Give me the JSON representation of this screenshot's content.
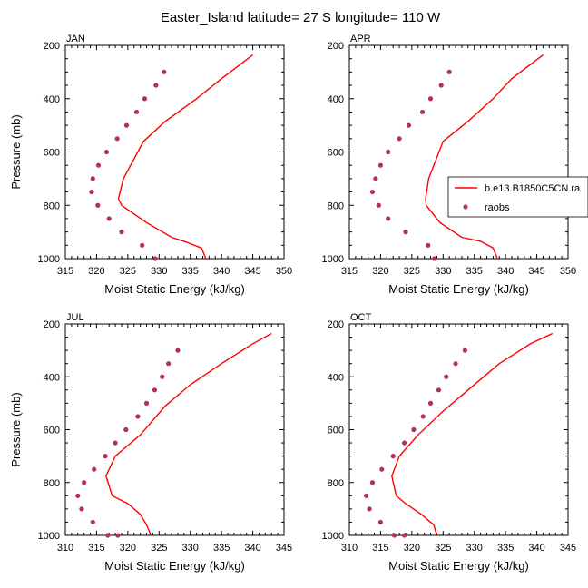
{
  "figure": {
    "title": "Easter_Island  latitude= 27 S longitude= 110 W"
  },
  "legend": {
    "entries": [
      {
        "label": "b.e13.B1850C5CN.ra",
        "style": "line",
        "color": "#ff0000"
      },
      {
        "label": "raobs",
        "style": "marker",
        "color": "#b03060"
      }
    ]
  },
  "colors": {
    "model_line": "#ff0000",
    "obs_marker": "#b03060"
  },
  "chart_data": [
    {
      "type": "line",
      "panel_label": "JAN",
      "xlabel": "Moist Static Energy (kJ/kg)",
      "ylabel": "Pressure (mb)",
      "xlim": [
        315,
        350
      ],
      "ylim": [
        1000,
        200
      ],
      "xticks": [
        315,
        320,
        325,
        330,
        335,
        340,
        345,
        350
      ],
      "yticks": [
        200,
        400,
        600,
        800,
        1000
      ],
      "series": [
        {
          "name": "b.e13.B1850C5CN.ra",
          "kind": "line",
          "x": [
            345.0,
            340.0,
            336.0,
            331.0,
            327.5,
            324.3,
            323.5,
            324.0,
            328.0,
            332.0,
            334.0,
            336.8,
            337.5
          ],
          "y": [
            236,
            325,
            400,
            485,
            560,
            700,
            775,
            800,
            865,
            920,
            935,
            960,
            1000
          ]
        },
        {
          "name": "raobs",
          "kind": "marker",
          "x": [
            330.8,
            329.5,
            327.7,
            326.4,
            324.8,
            323.3,
            321.6,
            320.3,
            319.4,
            319.2,
            320.2,
            322.0,
            324.0,
            327.3,
            329.4
          ],
          "y": [
            300,
            350,
            400,
            450,
            500,
            550,
            600,
            650,
            700,
            750,
            800,
            850,
            900,
            950,
            1000
          ]
        }
      ]
    },
    {
      "type": "line",
      "panel_label": "APR",
      "xlabel": "Moist Static Energy (kJ/kg)",
      "ylabel": "",
      "xlim": [
        315,
        350
      ],
      "ylim": [
        1000,
        200
      ],
      "xticks": [
        315,
        320,
        325,
        330,
        335,
        340,
        345,
        350
      ],
      "yticks": [
        200,
        400,
        600,
        800,
        1000
      ],
      "series": [
        {
          "name": "b.e13.B1850C5CN.ra",
          "kind": "line",
          "x": [
            346.0,
            341.0,
            338.0,
            334.0,
            330.0,
            327.7,
            327.2,
            327.3,
            329.5,
            333.0,
            336.0,
            338.0,
            338.7
          ],
          "y": [
            236,
            325,
            400,
            485,
            560,
            700,
            775,
            800,
            865,
            920,
            935,
            960,
            1000
          ]
        },
        {
          "name": "raobs",
          "kind": "marker",
          "x": [
            331.0,
            329.7,
            328.0,
            326.7,
            324.5,
            323.0,
            321.2,
            320.0,
            319.2,
            318.7,
            319.7,
            321.2,
            324.0,
            327.6,
            328.6
          ],
          "y": [
            300,
            350,
            400,
            450,
            500,
            550,
            600,
            650,
            700,
            750,
            800,
            850,
            900,
            950,
            1000
          ]
        }
      ]
    },
    {
      "type": "line",
      "panel_label": "JUL",
      "xlabel": "Moist Static Energy (kJ/kg)",
      "ylabel": "Pressure (mb)",
      "xlim": [
        310,
        345
      ],
      "ylim": [
        1000,
        200
      ],
      "xticks": [
        310,
        315,
        320,
        325,
        330,
        335,
        340,
        345
      ],
      "yticks": [
        200,
        400,
        600,
        800,
        1000
      ],
      "series": [
        {
          "name": "b.e13.B1850C5CN.ra",
          "kind": "line",
          "x": [
            343.0,
            340.0,
            335.0,
            330.0,
            326.0,
            322.0,
            318.0,
            316.5,
            317.5,
            320.0,
            322.0,
            323.0,
            323.7
          ],
          "y": [
            236,
            275,
            350,
            430,
            510,
            620,
            700,
            775,
            850,
            880,
            920,
            960,
            1000
          ]
        },
        {
          "name": "raobs",
          "kind": "marker",
          "x": [
            328.0,
            326.5,
            325.5,
            324.3,
            323.0,
            321.6,
            319.7,
            318.0,
            316.4,
            314.6,
            313.0,
            312.0,
            312.6,
            314.4,
            316.8,
            318.4
          ],
          "y": [
            300,
            350,
            400,
            450,
            500,
            550,
            600,
            650,
            700,
            750,
            800,
            850,
            900,
            950,
            1000,
            1000
          ]
        }
      ]
    },
    {
      "type": "line",
      "panel_label": "OCT",
      "xlabel": "Moist Static Energy (kJ/kg)",
      "ylabel": "",
      "xlim": [
        310,
        345
      ],
      "ylim": [
        1000,
        200
      ],
      "xticks": [
        310,
        315,
        320,
        325,
        330,
        335,
        340,
        345
      ],
      "yticks": [
        200,
        400,
        600,
        800,
        1000
      ],
      "series": [
        {
          "name": "b.e13.B1850C5CN.ra",
          "kind": "line",
          "x": [
            342.5,
            339.0,
            334.0,
            329.0,
            325.0,
            321.0,
            318.0,
            316.8,
            317.5,
            319.0,
            321.5,
            323.5,
            324.0
          ],
          "y": [
            236,
            275,
            350,
            450,
            530,
            620,
            700,
            775,
            850,
            880,
            920,
            960,
            1000
          ]
        },
        {
          "name": "raobs",
          "kind": "marker",
          "x": [
            328.5,
            327.0,
            325.5,
            324.3,
            323.0,
            321.8,
            320.3,
            318.8,
            317.0,
            315.2,
            313.7,
            312.7,
            313.2,
            315.0,
            317.2,
            318.8
          ],
          "y": [
            300,
            350,
            400,
            450,
            500,
            550,
            600,
            650,
            700,
            750,
            800,
            850,
            900,
            950,
            1000,
            1000
          ]
        }
      ]
    }
  ]
}
